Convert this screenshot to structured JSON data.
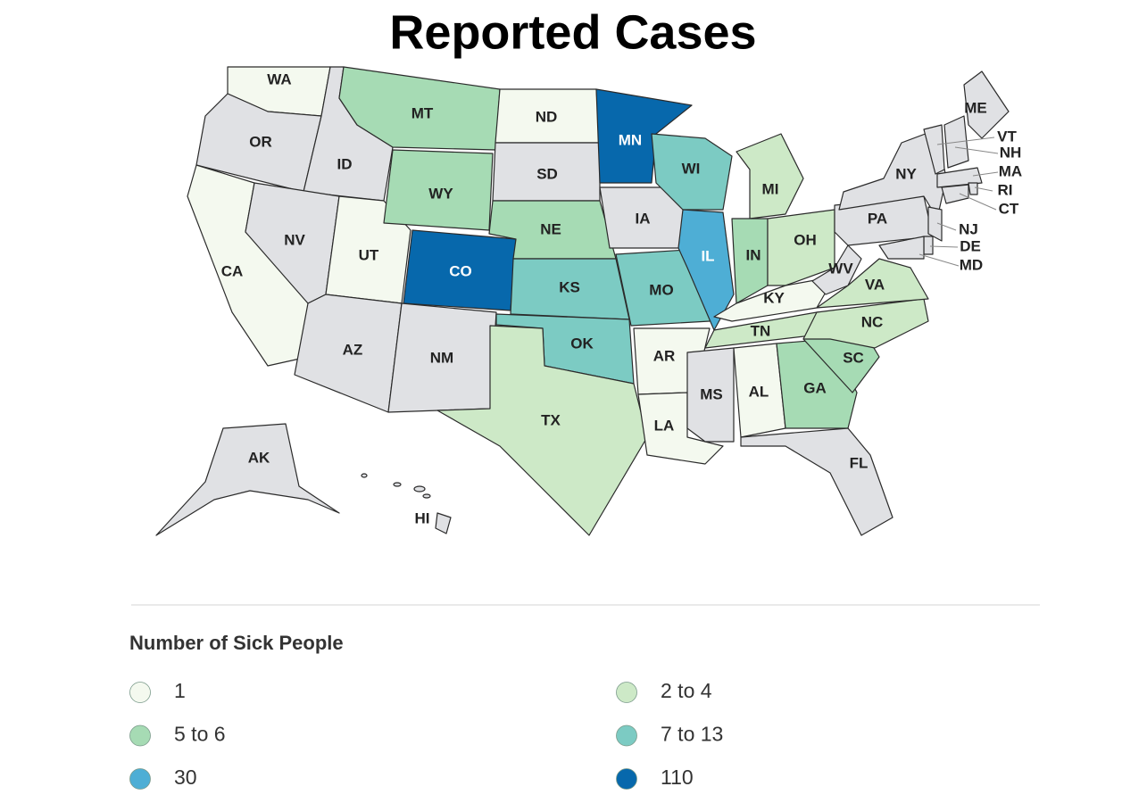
{
  "title": "Reported Cases",
  "legend": {
    "title": "Number of Sick People",
    "items": [
      {
        "label": "1",
        "color": "#f4f9ef"
      },
      {
        "label": "2 to 4",
        "color": "#cde9c7"
      },
      {
        "label": "5 to 6",
        "color": "#a6dbb4"
      },
      {
        "label": "7 to 13",
        "color": "#7ccbc3"
      },
      {
        "label": "30",
        "color": "#4eaed5"
      },
      {
        "label": "110",
        "color": "#0768ac"
      }
    ]
  },
  "no_data_color": "#e0e1e4",
  "states": [
    {
      "abbr": "WA",
      "category": 0
    },
    {
      "abbr": "OR",
      "category": null
    },
    {
      "abbr": "CA",
      "category": 0
    },
    {
      "abbr": "ID",
      "category": null
    },
    {
      "abbr": "NV",
      "category": null
    },
    {
      "abbr": "UT",
      "category": 0
    },
    {
      "abbr": "AZ",
      "category": null
    },
    {
      "abbr": "MT",
      "category": 2
    },
    {
      "abbr": "WY",
      "category": 2
    },
    {
      "abbr": "CO",
      "category": 5
    },
    {
      "abbr": "NM",
      "category": null
    },
    {
      "abbr": "ND",
      "category": 0
    },
    {
      "abbr": "SD",
      "category": null
    },
    {
      "abbr": "NE",
      "category": 2
    },
    {
      "abbr": "KS",
      "category": 3
    },
    {
      "abbr": "OK",
      "category": 3
    },
    {
      "abbr": "TX",
      "category": 1
    },
    {
      "abbr": "MN",
      "category": 5
    },
    {
      "abbr": "IA",
      "category": null
    },
    {
      "abbr": "MO",
      "category": 3
    },
    {
      "abbr": "AR",
      "category": 0
    },
    {
      "abbr": "LA",
      "category": 0
    },
    {
      "abbr": "WI",
      "category": 3
    },
    {
      "abbr": "IL",
      "category": 4
    },
    {
      "abbr": "MI",
      "category": 1
    },
    {
      "abbr": "IN",
      "category": 2
    },
    {
      "abbr": "OH",
      "category": 1
    },
    {
      "abbr": "KY",
      "category": 0
    },
    {
      "abbr": "TN",
      "category": 1
    },
    {
      "abbr": "MS",
      "category": null
    },
    {
      "abbr": "AL",
      "category": 0
    },
    {
      "abbr": "GA",
      "category": 2
    },
    {
      "abbr": "FL",
      "category": null
    },
    {
      "abbr": "SC",
      "category": 2
    },
    {
      "abbr": "NC",
      "category": 1
    },
    {
      "abbr": "VA",
      "category": 1
    },
    {
      "abbr": "WV",
      "category": null
    },
    {
      "abbr": "PA",
      "category": null
    },
    {
      "abbr": "NY",
      "category": null
    },
    {
      "abbr": "ME",
      "category": null
    },
    {
      "abbr": "VT",
      "category": null
    },
    {
      "abbr": "NH",
      "category": null
    },
    {
      "abbr": "MA",
      "category": null
    },
    {
      "abbr": "RI",
      "category": null
    },
    {
      "abbr": "CT",
      "category": null
    },
    {
      "abbr": "NJ",
      "category": null
    },
    {
      "abbr": "DE",
      "category": null
    },
    {
      "abbr": "MD",
      "category": null
    },
    {
      "abbr": "AK",
      "category": null
    },
    {
      "abbr": "HI",
      "category": null
    }
  ]
}
